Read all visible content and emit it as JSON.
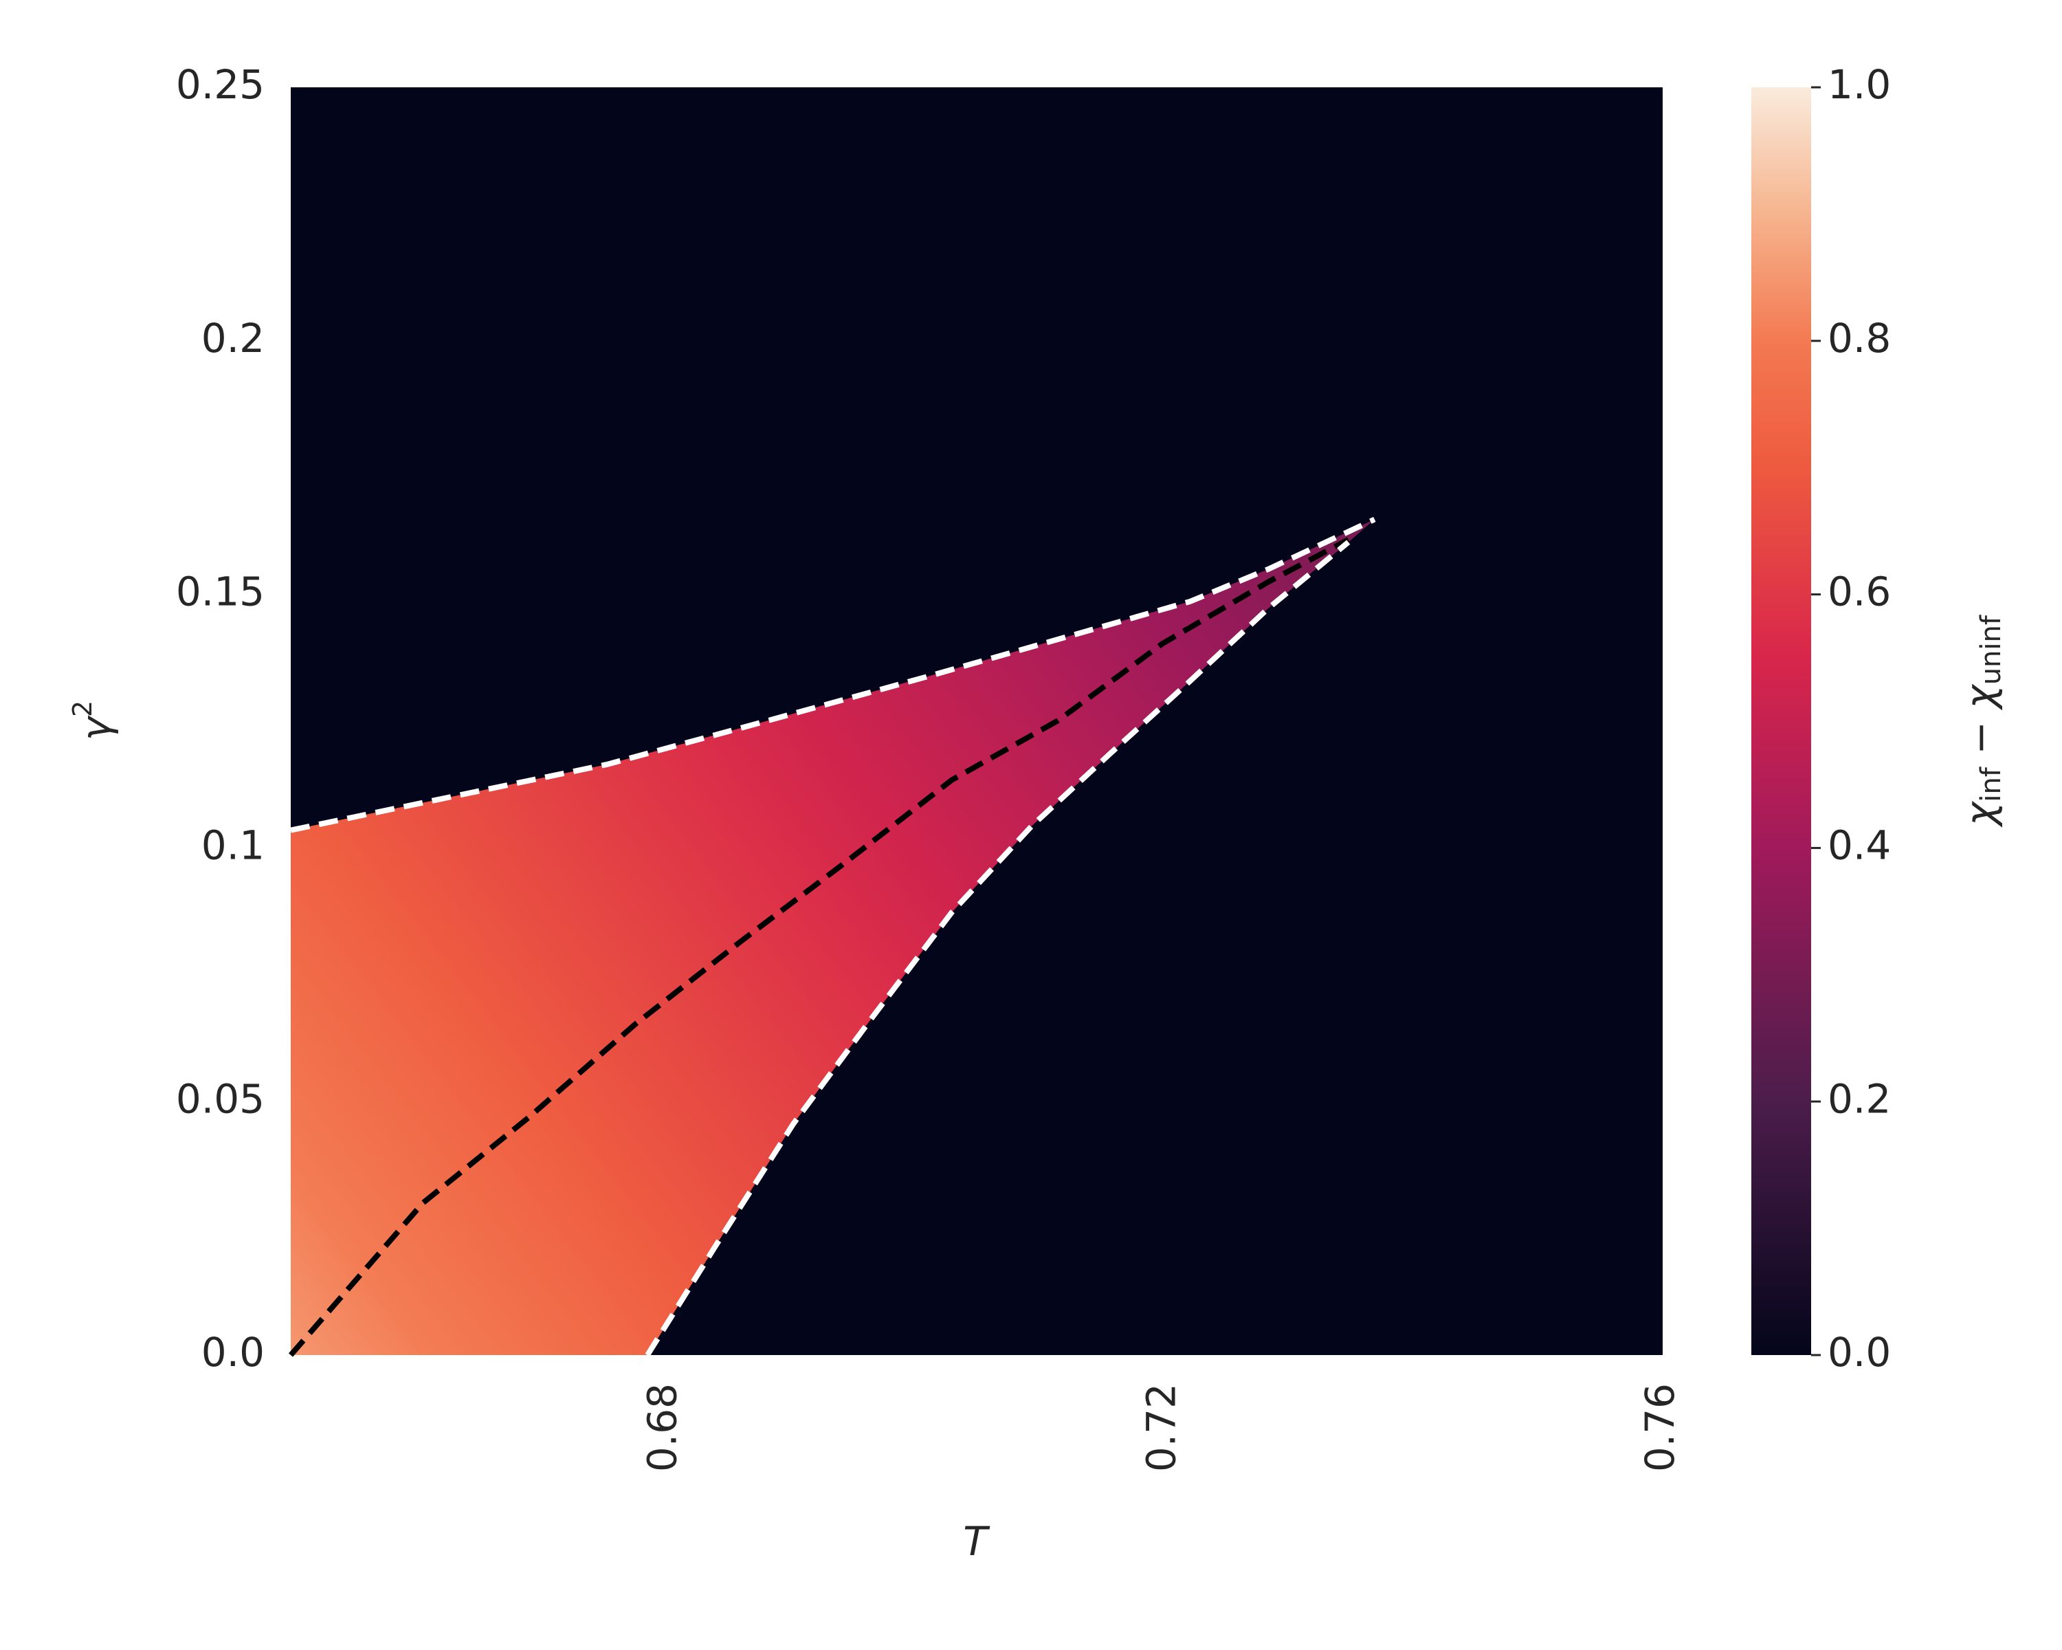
{
  "chart_data": {
    "type": "heatmap-region",
    "xlabel": "T",
    "ylabel": [
      "γ",
      "2"
    ],
    "colorbar_label": [
      "χ",
      "inf",
      " − χ",
      "uninf"
    ],
    "xlim": [
      0.65,
      0.76
    ],
    "xticks": [
      0.68,
      0.72,
      0.76
    ],
    "ylim": [
      0,
      0.25
    ],
    "yticks": [
      {
        "value": 0,
        "label": "0.0"
      },
      0.05,
      0.1,
      0.15,
      0.2,
      0.25
    ],
    "clim": [
      0,
      1
    ],
    "cticks": [
      {
        "value": 0,
        "label": "0.0"
      },
      0.2,
      0.4,
      0.6,
      0.8,
      {
        "value": 1,
        "label": "1.0"
      }
    ],
    "background": "#03051a",
    "colormap": [
      [
        0,
        "#03051a"
      ],
      [
        0.2,
        "#4c1d4b"
      ],
      [
        0.4,
        "#a11a5b"
      ],
      [
        0.55,
        "#d8264b"
      ],
      [
        0.7,
        "#ee5a3f"
      ],
      [
        0.8,
        "#f37a52"
      ],
      [
        0.9,
        "#f6b48e"
      ],
      [
        1,
        "#faebdd"
      ]
    ],
    "region_values": [
      0.85,
      0.3
    ],
    "series": [
      {
        "color": "#ffffff",
        "x": [
          0.65,
          0.6627,
          0.6754,
          0.6881,
          0.7009,
          0.7136,
          0.7221,
          0.7284,
          0.7369
        ],
        "values": [
          0.1035,
          0.11,
          0.1165,
          0.125,
          0.1337,
          0.1426,
          0.1486,
          0.155,
          0.1648
        ]
      },
      {
        "color": "#000000",
        "x": [
          0.65,
          0.6606,
          0.6691,
          0.6776,
          0.6861,
          0.6945,
          0.703,
          0.7115,
          0.7199,
          0.7284,
          0.7348
        ],
        "values": [
          0,
          0.03,
          0.0469,
          0.0652,
          0.0816,
          0.0972,
          0.1134,
          0.1251,
          0.1403,
          0.1525,
          0.1608
        ]
      },
      {
        "color": "#ffffff",
        "x": [
          0.6786,
          0.6839,
          0.6903,
          0.6966,
          0.703,
          0.7094,
          0.7157,
          0.7221,
          0.7284,
          0.7348
        ],
        "values": [
          0,
          0.0209,
          0.0456,
          0.0665,
          0.0873,
          0.1043,
          0.1186,
          0.1329,
          0.1473,
          0.1603
        ]
      }
    ]
  }
}
